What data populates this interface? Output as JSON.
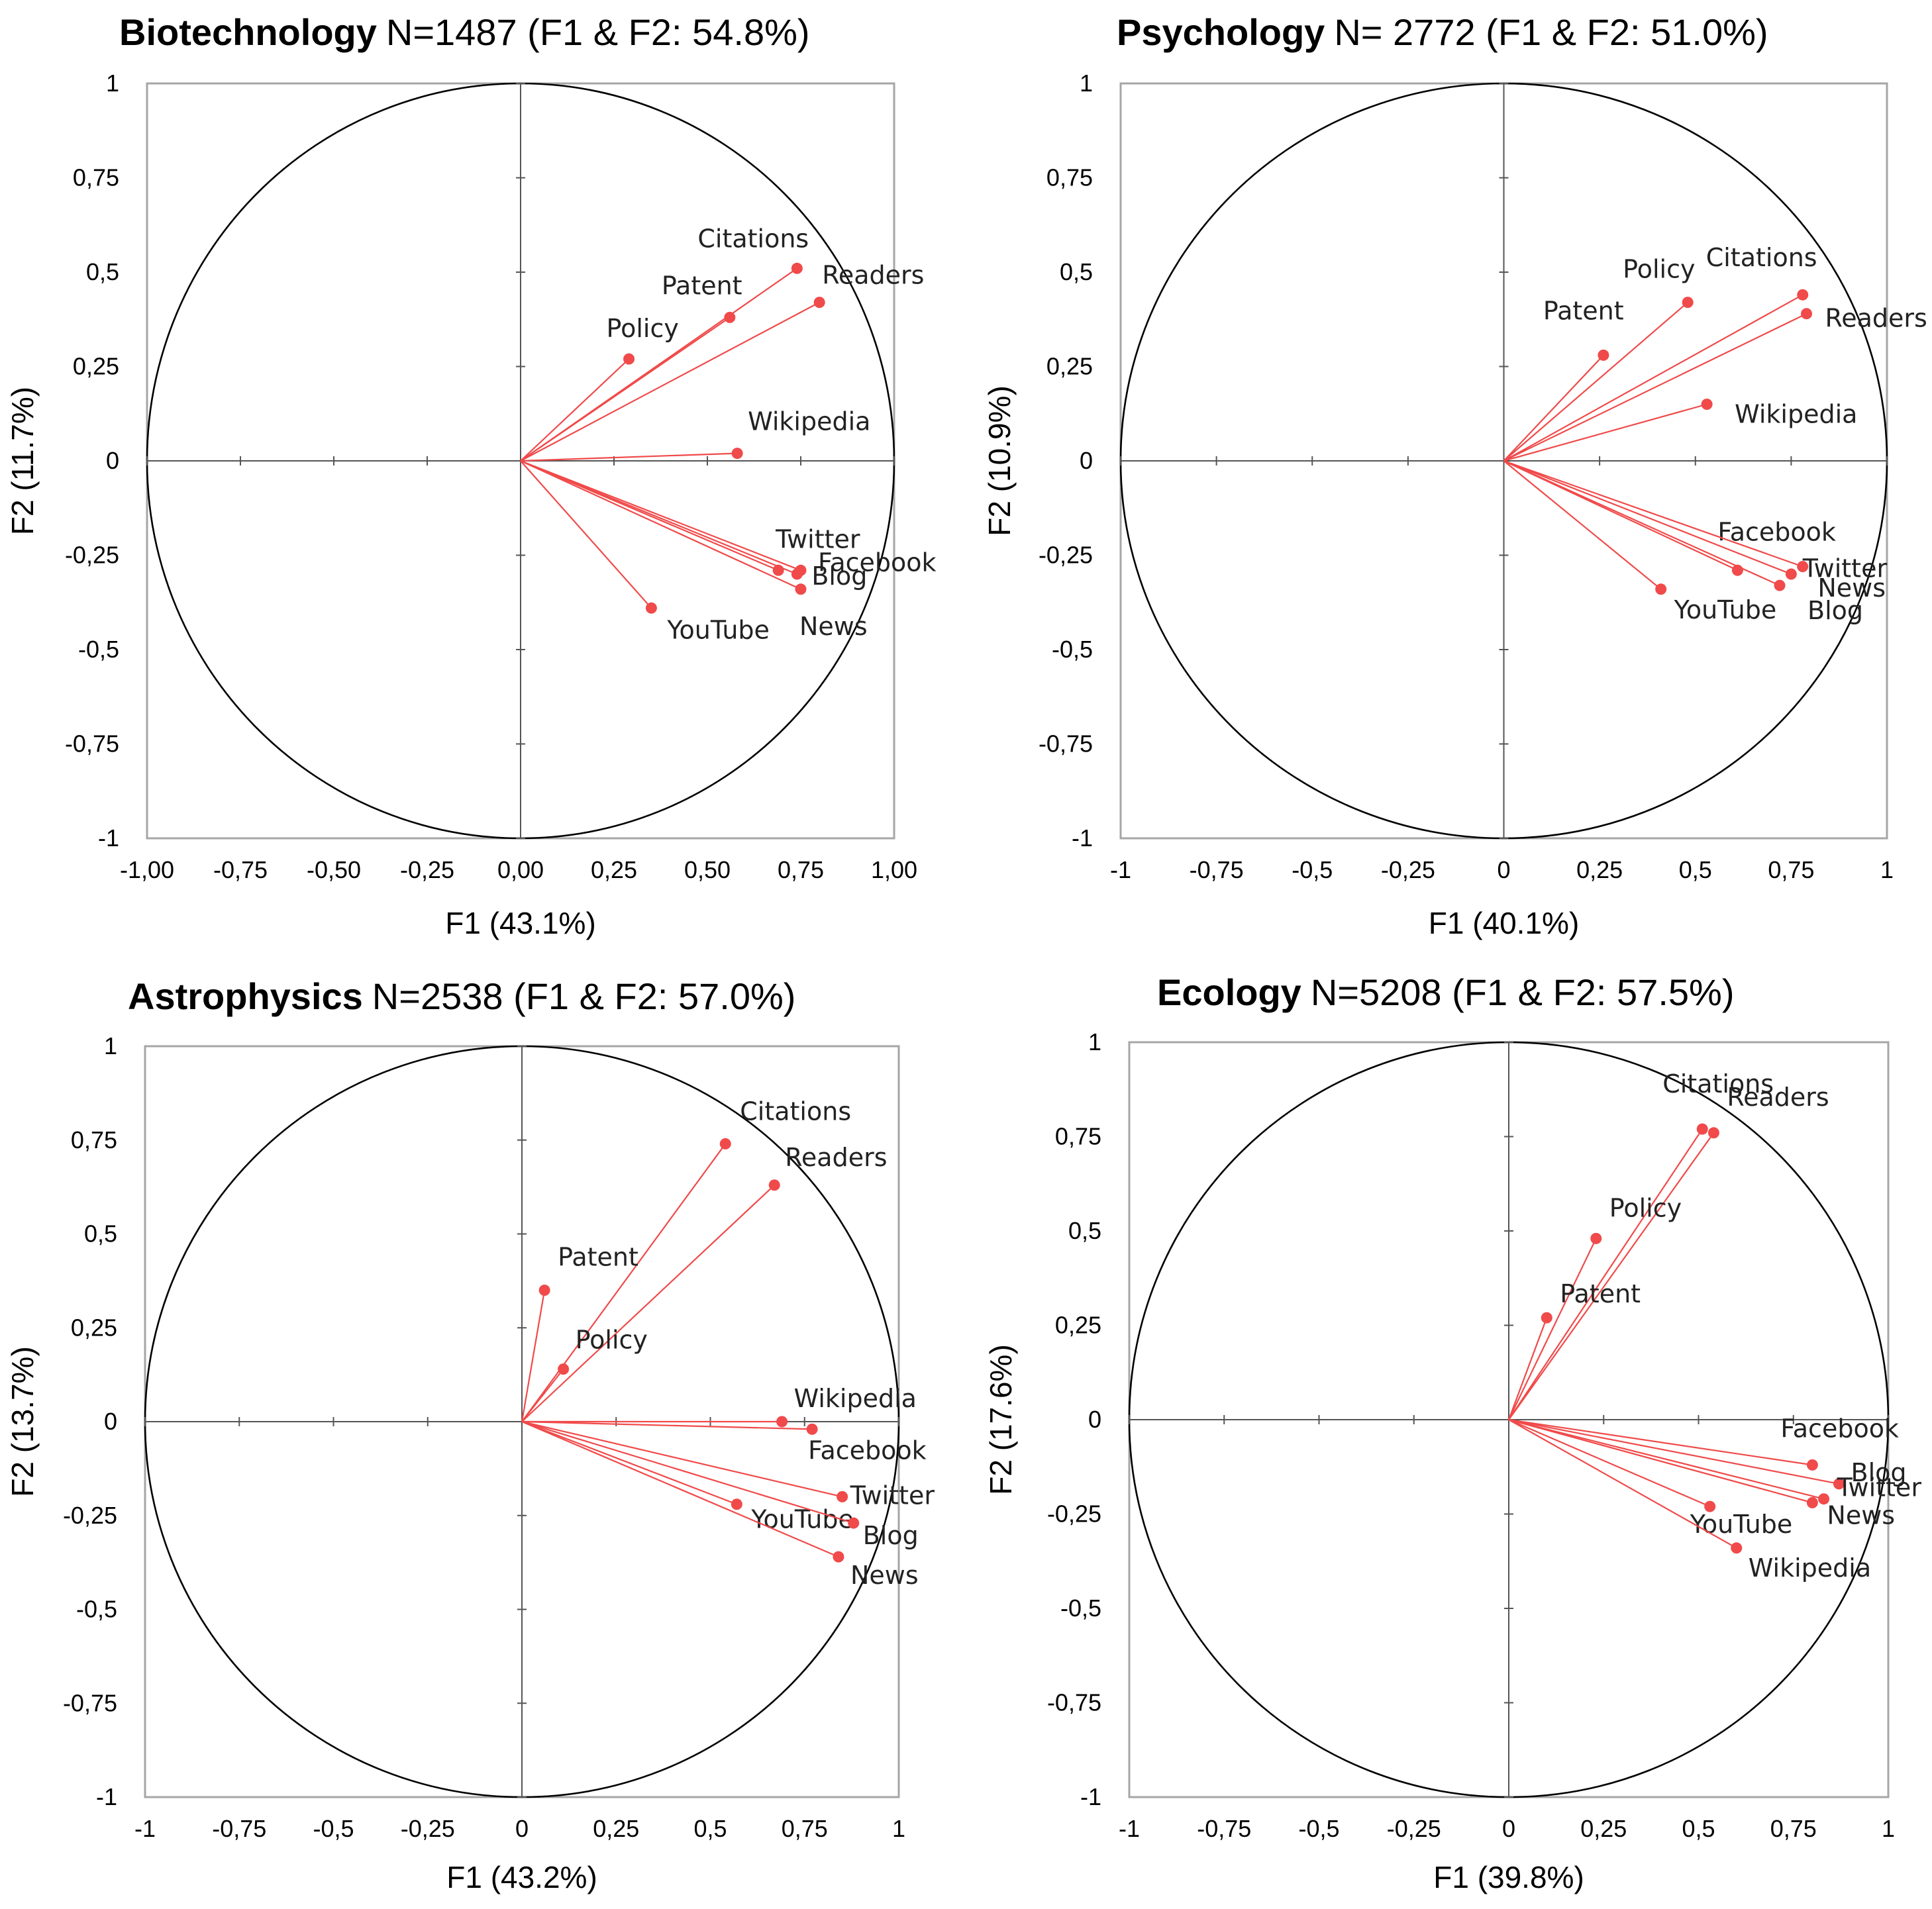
{
  "colors": {
    "vector": "#f04a4a",
    "axis": "#000000",
    "frame": "#a6a6a6"
  },
  "chart_data": [
    {
      "type": "scatter",
      "subtype": "correlation-circle",
      "title": "Biotechnology",
      "subtitle": "N=1487 (F1 & F2: 54.8%)",
      "xlabel": "F1 (43.1%)",
      "ylabel": "F2 (11.7%)",
      "xlim": [
        -1,
        1
      ],
      "ylim": [
        -1,
        1
      ],
      "xticks": [
        "-1,00",
        "-0,75",
        "-0,50",
        "-0,25",
        "0,00",
        "0,25",
        "0,50",
        "0,75",
        "1,00"
      ],
      "yticks": [
        "-1",
        "-0,75",
        "-0,5",
        "-0,25",
        "0",
        "0,25",
        "0,5",
        "0,75",
        "1"
      ],
      "points": [
        {
          "name": "Citations",
          "x": 0.74,
          "y": 0.51
        },
        {
          "name": "Readers",
          "x": 0.8,
          "y": 0.42
        },
        {
          "name": "Patent",
          "x": 0.56,
          "y": 0.38
        },
        {
          "name": "Policy",
          "x": 0.29,
          "y": 0.27
        },
        {
          "name": "Wikipedia",
          "x": 0.58,
          "y": 0.02
        },
        {
          "name": "Twitter",
          "x": 0.69,
          "y": -0.29
        },
        {
          "name": "Facebook",
          "x": 0.75,
          "y": -0.29
        },
        {
          "name": "Blog",
          "x": 0.74,
          "y": -0.3
        },
        {
          "name": "News",
          "x": 0.75,
          "y": -0.34
        },
        {
          "name": "YouTube",
          "x": 0.35,
          "y": -0.39
        }
      ]
    },
    {
      "type": "scatter",
      "subtype": "correlation-circle",
      "title": "Psychology",
      "subtitle": "N= 2772 (F1 & F2: 51.0%)",
      "xlabel": "F1 (40.1%)",
      "ylabel": "F2 (10.9%)",
      "xlim": [
        -1,
        1
      ],
      "ylim": [
        -1,
        1
      ],
      "xticks": [
        "-1",
        "-0,75",
        "-0,5",
        "-0,25",
        "0",
        "0,25",
        "0,5",
        "0,75",
        "1"
      ],
      "yticks": [
        "-1",
        "-0,75",
        "-0,5",
        "-0,25",
        "0",
        "0,25",
        "0,5",
        "0,75",
        "1"
      ],
      "points": [
        {
          "name": "Policy",
          "x": 0.48,
          "y": 0.42
        },
        {
          "name": "Citations",
          "x": 0.78,
          "y": 0.44
        },
        {
          "name": "Readers",
          "x": 0.79,
          "y": 0.39
        },
        {
          "name": "Patent",
          "x": 0.26,
          "y": 0.28
        },
        {
          "name": "Wikipedia",
          "x": 0.53,
          "y": 0.15
        },
        {
          "name": "Facebook",
          "x": 0.61,
          "y": -0.29
        },
        {
          "name": "Twitter",
          "x": 0.78,
          "y": -0.28
        },
        {
          "name": "News",
          "x": 0.75,
          "y": -0.3
        },
        {
          "name": "Blog",
          "x": 0.72,
          "y": -0.33
        },
        {
          "name": "YouTube",
          "x": 0.41,
          "y": -0.34
        }
      ]
    },
    {
      "type": "scatter",
      "subtype": "correlation-circle",
      "title": "Astrophysics",
      "subtitle": "N=2538 (F1 & F2: 57.0%)",
      "xlabel": "F1 (43.2%)",
      "ylabel": "F2 (13.7%)",
      "xlim": [
        -1,
        1
      ],
      "ylim": [
        -1,
        1
      ],
      "xticks": [
        "-1",
        "-0,75",
        "-0,5",
        "-0,25",
        "0",
        "0,25",
        "0,5",
        "0,75",
        "1"
      ],
      "yticks": [
        "-1",
        "-0,75",
        "-0,5",
        "-0,25",
        "0",
        "0,25",
        "0,5",
        "0,75",
        "1"
      ],
      "points": [
        {
          "name": "Citations",
          "x": 0.54,
          "y": 0.74
        },
        {
          "name": "Readers",
          "x": 0.67,
          "y": 0.63
        },
        {
          "name": "Patent",
          "x": 0.06,
          "y": 0.35
        },
        {
          "name": "Policy",
          "x": 0.11,
          "y": 0.14
        },
        {
          "name": "Wikipedia",
          "x": 0.69,
          "y": 0.0
        },
        {
          "name": "Facebook",
          "x": 0.77,
          "y": -0.02
        },
        {
          "name": "Twitter",
          "x": 0.85,
          "y": -0.2
        },
        {
          "name": "YouTube",
          "x": 0.57,
          "y": -0.22
        },
        {
          "name": "Blog",
          "x": 0.88,
          "y": -0.27
        },
        {
          "name": "News",
          "x": 0.84,
          "y": -0.36
        }
      ]
    },
    {
      "type": "scatter",
      "subtype": "correlation-circle",
      "title": "Ecology",
      "subtitle": "N=5208  (F1 & F2: 57.5%)",
      "xlabel": "F1 (39.8%)",
      "ylabel": "F2 (17.6%)",
      "xlim": [
        -1,
        1
      ],
      "ylim": [
        -1,
        1
      ],
      "xticks": [
        "-1",
        "-0,75",
        "-0,5",
        "-0,25",
        "0",
        "0,25",
        "0,5",
        "0,75",
        "1"
      ],
      "yticks": [
        "-1",
        "-0,75",
        "-0,5",
        "-0,25",
        "0",
        "0,25",
        "0,5",
        "0,75",
        "1"
      ],
      "points": [
        {
          "name": "Citations",
          "x": 0.51,
          "y": 0.77
        },
        {
          "name": "Readers",
          "x": 0.54,
          "y": 0.76
        },
        {
          "name": "Policy",
          "x": 0.23,
          "y": 0.48
        },
        {
          "name": "Patent",
          "x": 0.1,
          "y": 0.27
        },
        {
          "name": "Facebook",
          "x": 0.8,
          "y": -0.12
        },
        {
          "name": "Blog",
          "x": 0.87,
          "y": -0.17
        },
        {
          "name": "Twitter",
          "x": 0.83,
          "y": -0.21
        },
        {
          "name": "News",
          "x": 0.8,
          "y": -0.22
        },
        {
          "name": "YouTube",
          "x": 0.53,
          "y": -0.23
        },
        {
          "name": "Wikipedia",
          "x": 0.6,
          "y": -0.34
        }
      ]
    }
  ]
}
